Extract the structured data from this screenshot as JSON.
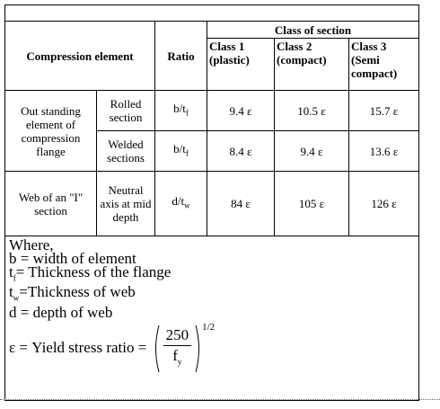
{
  "table": {
    "header": {
      "compression_element": "Compression element",
      "ratio": "Ratio",
      "class_of_section": "Class of section",
      "classes": [
        {
          "name": "Class 1",
          "desc": "(plastic)"
        },
        {
          "name": "Class 2",
          "desc": "(compact)"
        },
        {
          "name": "Class 3",
          "desc": "(Semi compact)"
        }
      ]
    },
    "rows": [
      {
        "element": "Out standing element of compression flange",
        "sub": "Rolled section",
        "ratio": {
          "base": "b/t",
          "sub": "f"
        },
        "values": [
          "9.4 ε",
          "10.5 ε",
          "15.7 ε"
        ]
      },
      {
        "sub": "Welded sections",
        "ratio": {
          "base": "b/t",
          "sub": "f"
        },
        "values": [
          "8.4 ε",
          "9.4 ε",
          "13.6 ε"
        ]
      },
      {
        "element": "Web of an \"I\" section",
        "sub": "Neutral axis at mid depth",
        "ratio": {
          "base": "d/t",
          "sub": "w"
        },
        "values": [
          "84 ε",
          "105 ε",
          "126 ε"
        ]
      }
    ]
  },
  "notes": {
    "intro": "Where,",
    "b": "b = width of element",
    "tf": {
      "symbol": "t",
      "sub": "f",
      "text": "= Thickness of the flange"
    },
    "tw": {
      "symbol": "t",
      "sub": "w",
      "text": "=Thickness of web"
    },
    "d": "d = depth of web",
    "epsilon": {
      "text": "ε = Yield stress ratio =",
      "numerator": "250",
      "denominator": {
        "symbol": "f",
        "sub": "y"
      },
      "exponent": "1/2"
    }
  }
}
